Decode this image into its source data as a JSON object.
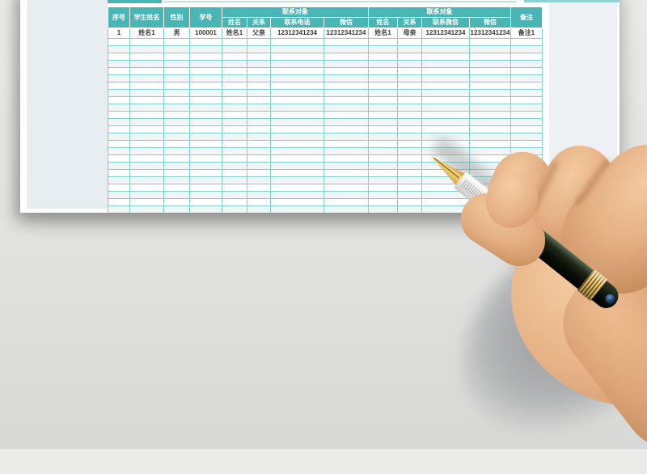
{
  "table": {
    "header_row1": [
      {
        "label": "序号",
        "rowspan": 2
      },
      {
        "label": "学生姓名",
        "rowspan": 2
      },
      {
        "label": "性别",
        "rowspan": 2
      },
      {
        "label": "学号",
        "rowspan": 2
      },
      {
        "label": "联系对象",
        "colspan": 4
      },
      {
        "label": "联系对象",
        "colspan": 4
      },
      {
        "label": "备注",
        "rowspan": 2
      }
    ],
    "header_row2": [
      "姓名",
      "关系",
      "联系电话",
      "微信",
      "姓名",
      "关系",
      "联系微信",
      "微信"
    ],
    "rows": [
      [
        "1",
        "姓名1",
        "男",
        "100001",
        "姓名1",
        "父亲",
        "12312341234",
        "12312341234",
        "姓名1",
        "母亲",
        "12312341234",
        "12312341234",
        "备注1"
      ]
    ],
    "empty_row_count": 25,
    "column_count": 13
  },
  "colors": {
    "header_teal": "#4ab5b5",
    "grid_teal": "#85cccc",
    "row_alternate": "#f0f5f6",
    "paper": "#ffffff",
    "left_panel": "#e7edf1",
    "right_panel": "#eef1f3",
    "desk_background": "#e3e3e1",
    "pen_gold": "#f0d37f",
    "pen_barrel": "#0a0f07",
    "skin": "#e6b286"
  },
  "scene": {
    "hand": "right hand holding a fountain pen over the printed student contact sheet",
    "pen": "dark green fountain pen with gold nib, gold bands and silver grip"
  }
}
